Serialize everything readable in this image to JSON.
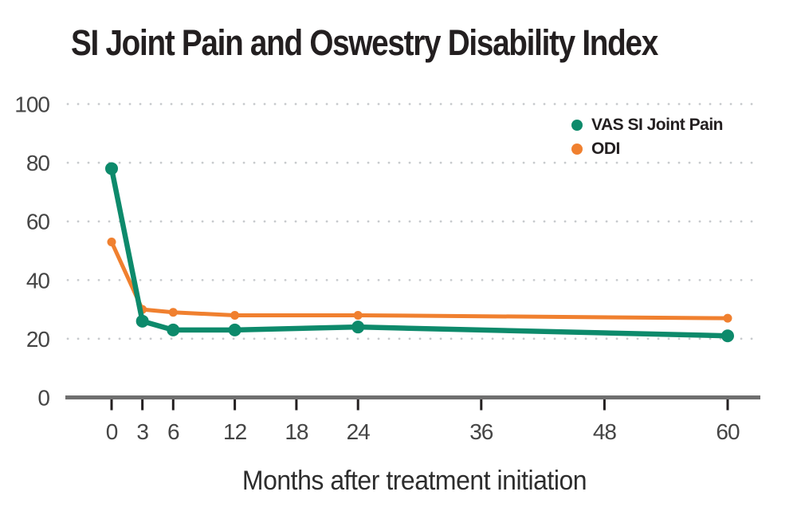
{
  "title": "SI Joint Pain and Oswestry Disability Index",
  "chart_data": {
    "type": "line",
    "x": [
      0,
      3,
      6,
      12,
      24,
      60
    ],
    "x_ticks": [
      0,
      3,
      6,
      12,
      18,
      24,
      36,
      48,
      60
    ],
    "y_ticks": [
      0,
      20,
      40,
      60,
      80,
      100
    ],
    "xlim": [
      0,
      60
    ],
    "ylim": [
      0,
      100
    ],
    "xlabel": "Months after treatment initiation",
    "ylabel": "",
    "grid": "dotted-horizontal",
    "legend_position": "top-right",
    "series": [
      {
        "name": "VAS SI Joint Pain",
        "color": "#0d8a6b",
        "values": [
          78,
          26,
          23,
          23,
          24,
          21
        ]
      },
      {
        "name": "ODI",
        "color": "#f0802f",
        "values": [
          53,
          30,
          29,
          28,
          28,
          27
        ]
      }
    ]
  },
  "colors": {
    "background": "#ffffff",
    "axis_line": "#6f6f6f",
    "tick_mark": "#231f20",
    "tick_label": "#454545",
    "grid_dots": "#c7cacd",
    "title": "#231f20"
  }
}
